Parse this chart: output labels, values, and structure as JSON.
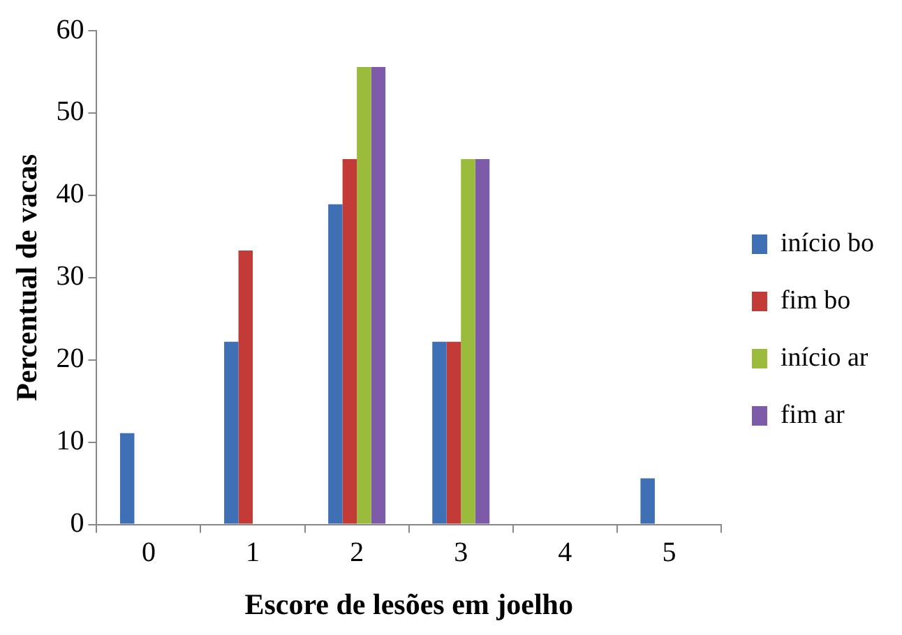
{
  "chart_data": {
    "type": "bar",
    "xlabel": "Escore de lesões em joelho",
    "ylabel": "Percentual de vacas",
    "categories": [
      "0",
      "1",
      "2",
      "3",
      "4",
      "5"
    ],
    "series": [
      {
        "name": "início bo",
        "color": "#3f6fb5",
        "values": [
          11.1,
          22.2,
          38.9,
          22.2,
          0,
          5.6
        ]
      },
      {
        "name": "fim bo",
        "color": "#c23b37",
        "values": [
          0,
          33.3,
          44.4,
          22.2,
          0,
          0
        ]
      },
      {
        "name": "início ar",
        "color": "#9bbb3c",
        "values": [
          0,
          0,
          55.6,
          44.4,
          0,
          0
        ]
      },
      {
        "name": "fim ar",
        "color": "#7e5ba8",
        "values": [
          0,
          0,
          55.6,
          44.4,
          0,
          0
        ]
      }
    ],
    "ylim": [
      0,
      60
    ],
    "yticks": [
      0,
      10,
      20,
      30,
      40,
      50,
      60
    ],
    "grid": false,
    "legend": "right"
  }
}
